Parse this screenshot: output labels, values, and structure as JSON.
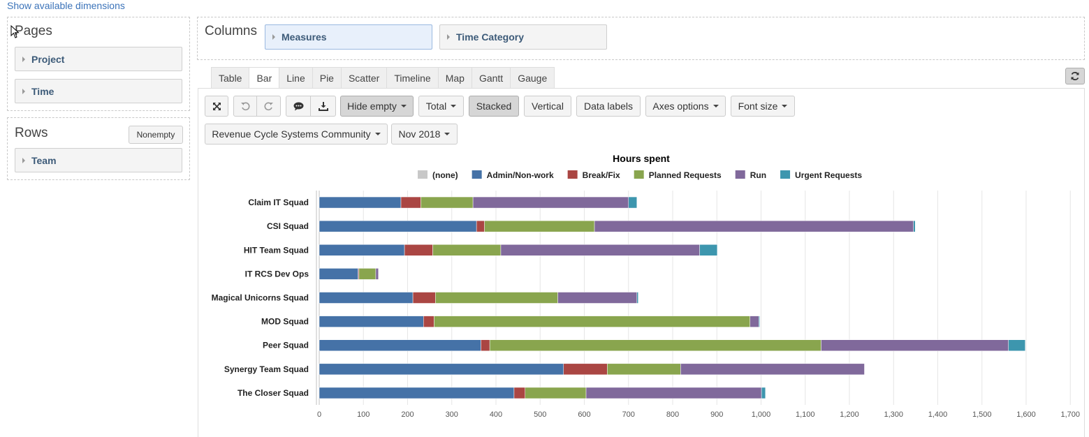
{
  "top_link": "Show available dimensions",
  "pages": {
    "title": "Pages",
    "items": [
      "Project",
      "Time"
    ]
  },
  "rows": {
    "title": "Rows",
    "nonempty_label": "Nonempty",
    "items": [
      "Team"
    ]
  },
  "columns": {
    "title": "Columns",
    "items": [
      "Measures",
      "Time Category"
    ]
  },
  "tabs": [
    "Table",
    "Bar",
    "Line",
    "Pie",
    "Scatter",
    "Timeline",
    "Map",
    "Gantt",
    "Gauge"
  ],
  "active_tab": "Bar",
  "toolbar": {
    "hide_empty": "Hide empty",
    "total": "Total",
    "stacked": "Stacked",
    "vertical": "Vertical",
    "data_labels": "Data labels",
    "axes_options": "Axes options",
    "font_size": "Font size"
  },
  "filters": {
    "project": "Revenue Cycle Systems Community",
    "time": "Nov 2018"
  },
  "icons": {
    "fullscreen": "expand-icon",
    "undo": "undo-icon",
    "redo": "redo-icon",
    "comment": "comment-icon",
    "download": "download-icon",
    "refresh": "refresh-icon"
  },
  "chart_data": {
    "type": "bar",
    "orientation": "horizontal",
    "stacked": true,
    "title": "Hours spent",
    "xlabel": "",
    "ylabel": "",
    "xlim": [
      0,
      1700
    ],
    "x_ticks": [
      "0",
      "100",
      "200",
      "300",
      "400",
      "500",
      "600",
      "700",
      "800",
      "900",
      "1,000",
      "1,100",
      "1,200",
      "1,300",
      "1,400",
      "1,500",
      "1,600",
      "1,700"
    ],
    "grid": true,
    "legend_position": "top",
    "categories": [
      "Claim IT Squad",
      "CSI Squad",
      "HIT Team Squad",
      "IT RCS Dev Ops",
      "Magical Unicorns Squad",
      "MOD Squad",
      "Peer Squad",
      "Synergy Team Squad",
      "The Closer Squad"
    ],
    "series": [
      {
        "name": "(none)",
        "color": "#c8c8c8",
        "values": [
          0,
          0,
          0,
          0,
          0,
          0,
          0,
          0,
          0
        ]
      },
      {
        "name": "Admin/Non-work",
        "color": "#4572a7",
        "values": [
          185,
          356,
          193,
          88,
          212,
          236,
          366,
          553,
          441
        ]
      },
      {
        "name": "Break/Fix",
        "color": "#aa4643",
        "values": [
          45,
          18,
          64,
          2,
          51,
          24,
          20,
          99,
          25
        ]
      },
      {
        "name": "Planned Requests",
        "color": "#89a54e",
        "values": [
          118,
          249,
          154,
          38,
          277,
          715,
          750,
          166,
          138
        ]
      },
      {
        "name": "Run",
        "color": "#80699b",
        "values": [
          352,
          722,
          450,
          6,
          179,
          20,
          424,
          416,
          397
        ]
      },
      {
        "name": "Urgent Requests",
        "color": "#3d96ae",
        "values": [
          19,
          4,
          40,
          0,
          3,
          2,
          38,
          0,
          9
        ]
      }
    ]
  }
}
